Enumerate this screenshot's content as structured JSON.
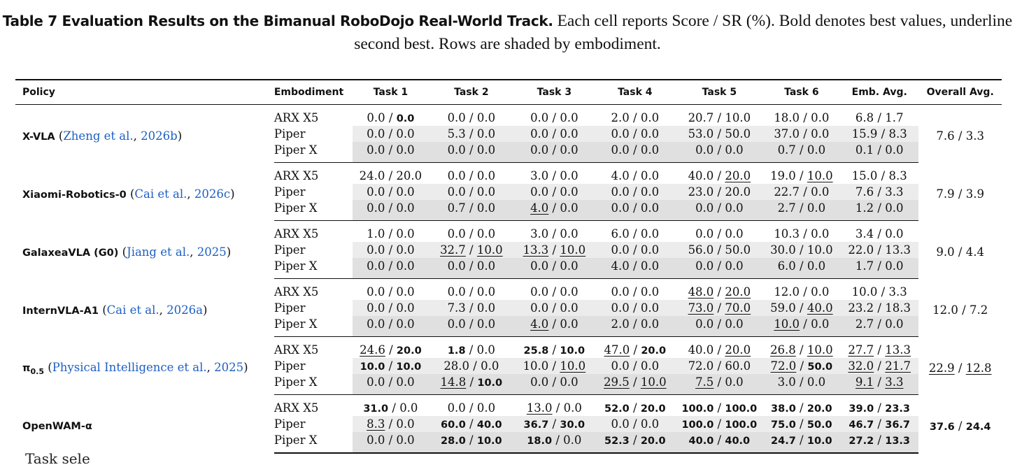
{
  "caption": {
    "label": "Table 7  Evaluation Results on the Bimanual RoboDojo Real-World Track.",
    "text": " Each cell reports Score / SR (%). Bold denotes best values, underline second best. Rows are shaded by embodiment."
  },
  "headers": [
    "Policy",
    "Embodiment",
    "Task 1",
    "Task 2",
    "Task 3",
    "Task 4",
    "Task 5",
    "Task 6",
    "Emb. Avg.",
    "Overall Avg."
  ],
  "groups": [
    {
      "policy": "X-VLA",
      "citation": {
        "author": "Zheng et al.",
        "year": "2026b"
      },
      "overall": {
        "score": "7.6",
        "sr": "3.3"
      },
      "rows": [
        {
          "embodiment": "ARX X5",
          "cells": [
            [
              "0.0",
              "0.0"
            ],
            [
              "0.0",
              "0.0"
            ],
            [
              "0.0",
              "0.0"
            ],
            [
              "2.0",
              "0.0"
            ],
            [
              "20.7",
              "10.0"
            ],
            [
              "18.0",
              "0.0"
            ],
            [
              "6.8",
              "1.7"
            ]
          ]
        },
        {
          "embodiment": "Piper",
          "cells": [
            [
              "0.0",
              "0.0"
            ],
            [
              "5.3",
              "0.0"
            ],
            [
              "0.0",
              "0.0"
            ],
            [
              "0.0",
              "0.0"
            ],
            [
              "53.0",
              "50.0"
            ],
            [
              "37.0",
              "0.0"
            ],
            [
              "15.9",
              "8.3"
            ]
          ]
        },
        {
          "embodiment": "Piper X",
          "cells": [
            [
              "0.0",
              "0.0"
            ],
            [
              "0.0",
              "0.0"
            ],
            [
              "0.0",
              "0.0"
            ],
            [
              "0.0",
              "0.0"
            ],
            [
              "0.0",
              "0.0"
            ],
            [
              "0.7",
              "0.0"
            ],
            [
              "0.1",
              "0.0"
            ]
          ]
        }
      ]
    },
    {
      "policy": "Xiaomi-Robotics-0",
      "citation": {
        "author": "Cai et al.",
        "year": "2026c"
      },
      "overall": {
        "score": "7.9",
        "sr": "3.9"
      },
      "rows": [
        {
          "embodiment": "ARX X5",
          "cells": [
            [
              "24.0",
              "20.0"
            ],
            [
              "0.0",
              "0.0"
            ],
            [
              "3.0",
              "0.0"
            ],
            [
              "4.0",
              "0.0"
            ],
            [
              "40.0",
              "20.0"
            ],
            [
              "19.0",
              "10.0"
            ],
            [
              "15.0",
              "8.3"
            ]
          ]
        },
        {
          "embodiment": "Piper",
          "cells": [
            [
              "0.0",
              "0.0"
            ],
            [
              "0.0",
              "0.0"
            ],
            [
              "0.0",
              "0.0"
            ],
            [
              "0.0",
              "0.0"
            ],
            [
              "23.0",
              "20.0"
            ],
            [
              "22.7",
              "0.0"
            ],
            [
              "7.6",
              "3.3"
            ]
          ]
        },
        {
          "embodiment": "Piper X",
          "cells": [
            [
              "0.0",
              "0.0"
            ],
            [
              "0.7",
              "0.0"
            ],
            [
              "4.0",
              "0.0"
            ],
            [
              "0.0",
              "0.0"
            ],
            [
              "0.0",
              "0.0"
            ],
            [
              "2.7",
              "0.0"
            ],
            [
              "1.2",
              "0.0"
            ]
          ]
        }
      ]
    },
    {
      "policy": "GalaxeaVLA (G0)",
      "citation": {
        "author": "Jiang et al.",
        "year": "2025"
      },
      "overall": {
        "score": "9.0",
        "sr": "4.4"
      },
      "rows": [
        {
          "embodiment": "ARX X5",
          "cells": [
            [
              "1.0",
              "0.0"
            ],
            [
              "0.0",
              "0.0"
            ],
            [
              "3.0",
              "0.0"
            ],
            [
              "6.0",
              "0.0"
            ],
            [
              "0.0",
              "0.0"
            ],
            [
              "10.3",
              "0.0"
            ],
            [
              "3.4",
              "0.0"
            ]
          ]
        },
        {
          "embodiment": "Piper",
          "cells": [
            [
              "0.0",
              "0.0"
            ],
            [
              "32.7",
              "10.0"
            ],
            [
              "13.3",
              "10.0"
            ],
            [
              "0.0",
              "0.0"
            ],
            [
              "56.0",
              "50.0"
            ],
            [
              "30.0",
              "10.0"
            ],
            [
              "22.0",
              "13.3"
            ]
          ]
        },
        {
          "embodiment": "Piper X",
          "cells": [
            [
              "0.0",
              "0.0"
            ],
            [
              "0.0",
              "0.0"
            ],
            [
              "0.0",
              "0.0"
            ],
            [
              "4.0",
              "0.0"
            ],
            [
              "0.0",
              "0.0"
            ],
            [
              "6.0",
              "0.0"
            ],
            [
              "1.7",
              "0.0"
            ]
          ]
        }
      ]
    },
    {
      "policy": "InternVLA-A1",
      "citation": {
        "author": "Cai et al.",
        "year": "2026a"
      },
      "overall": {
        "score": "12.0",
        "sr": "7.2"
      },
      "rows": [
        {
          "embodiment": "ARX X5",
          "cells": [
            [
              "0.0",
              "0.0"
            ],
            [
              "0.0",
              "0.0"
            ],
            [
              "0.0",
              "0.0"
            ],
            [
              "0.0",
              "0.0"
            ],
            [
              "48.0",
              "20.0"
            ],
            [
              "12.0",
              "0.0"
            ],
            [
              "10.0",
              "3.3"
            ]
          ]
        },
        {
          "embodiment": "Piper",
          "cells": [
            [
              "0.0",
              "0.0"
            ],
            [
              "7.3",
              "0.0"
            ],
            [
              "0.0",
              "0.0"
            ],
            [
              "0.0",
              "0.0"
            ],
            [
              "73.0",
              "70.0"
            ],
            [
              "59.0",
              "40.0"
            ],
            [
              "23.2",
              "18.3"
            ]
          ]
        },
        {
          "embodiment": "Piper X",
          "cells": [
            [
              "0.0",
              "0.0"
            ],
            [
              "0.0",
              "0.0"
            ],
            [
              "4.0",
              "0.0"
            ],
            [
              "2.0",
              "0.0"
            ],
            [
              "0.0",
              "0.0"
            ],
            [
              "10.0",
              "0.0"
            ],
            [
              "2.7",
              "0.0"
            ]
          ]
        }
      ]
    },
    {
      "policy": "π0.5",
      "citation": {
        "author": "Physical Intelligence et al.",
        "year": "2025"
      },
      "overall": {
        "score": "22.9",
        "sr": "12.8"
      },
      "rows": [
        {
          "embodiment": "ARX X5",
          "cells": [
            [
              "24.6",
              "20.0"
            ],
            [
              "1.8",
              "0.0"
            ],
            [
              "25.8",
              "10.0"
            ],
            [
              "47.0",
              "20.0"
            ],
            [
              "40.0",
              "20.0"
            ],
            [
              "26.8",
              "10.0"
            ],
            [
              "27.7",
              "13.3"
            ]
          ]
        },
        {
          "embodiment": "Piper",
          "cells": [
            [
              "10.0",
              "10.0"
            ],
            [
              "28.0",
              "0.0"
            ],
            [
              "10.0",
              "10.0"
            ],
            [
              "0.0",
              "0.0"
            ],
            [
              "72.0",
              "60.0"
            ],
            [
              "72.0",
              "50.0"
            ],
            [
              "32.0",
              "21.7"
            ]
          ]
        },
        {
          "embodiment": "Piper X",
          "cells": [
            [
              "0.0",
              "0.0"
            ],
            [
              "14.8",
              "10.0"
            ],
            [
              "0.0",
              "0.0"
            ],
            [
              "29.5",
              "10.0"
            ],
            [
              "7.5",
              "0.0"
            ],
            [
              "3.0",
              "0.0"
            ],
            [
              "9.1",
              "3.3"
            ]
          ]
        }
      ]
    },
    {
      "policy": "OpenWAM-α",
      "citation": null,
      "overall": {
        "score": "37.6",
        "sr": "24.4"
      },
      "rows": [
        {
          "embodiment": "ARX X5",
          "cells": [
            [
              "31.0",
              "0.0"
            ],
            [
              "0.0",
              "0.0"
            ],
            [
              "13.0",
              "0.0"
            ],
            [
              "52.0",
              "20.0"
            ],
            [
              "100.0",
              "100.0"
            ],
            [
              "38.0",
              "20.0"
            ],
            [
              "39.0",
              "23.3"
            ]
          ]
        },
        {
          "embodiment": "Piper",
          "cells": [
            [
              "8.3",
              "0.0"
            ],
            [
              "60.0",
              "40.0"
            ],
            [
              "36.7",
              "30.0"
            ],
            [
              "0.0",
              "0.0"
            ],
            [
              "100.0",
              "100.0"
            ],
            [
              "75.0",
              "50.0"
            ],
            [
              "46.7",
              "36.7"
            ]
          ]
        },
        {
          "embodiment": "Piper X",
          "cells": [
            [
              "0.0",
              "0.0"
            ],
            [
              "28.0",
              "10.0"
            ],
            [
              "18.0",
              "0.0"
            ],
            [
              "52.3",
              "20.0"
            ],
            [
              "40.0",
              "40.0"
            ],
            [
              "24.7",
              "10.0"
            ],
            [
              "27.2",
              "13.3"
            ]
          ]
        }
      ]
    }
  ],
  "formatting": {
    "bold": [
      [
        0,
        0,
        0,
        1
      ],
      [
        4,
        0,
        0,
        1
      ],
      [
        4,
        0,
        1,
        0
      ],
      [
        4,
        0,
        2,
        0
      ],
      [
        4,
        0,
        2,
        1
      ],
      [
        4,
        0,
        3,
        1
      ],
      [
        4,
        1,
        0,
        0
      ],
      [
        4,
        1,
        0,
        1
      ],
      [
        4,
        1,
        5,
        1
      ],
      [
        4,
        2,
        1,
        1
      ],
      [
        5,
        0,
        0,
        0
      ],
      [
        5,
        0,
        3,
        0
      ],
      [
        5,
        0,
        3,
        1
      ],
      [
        5,
        0,
        4,
        0
      ],
      [
        5,
        0,
        4,
        1
      ],
      [
        5,
        0,
        5,
        0
      ],
      [
        5,
        0,
        5,
        1
      ],
      [
        5,
        0,
        6,
        0
      ],
      [
        5,
        0,
        6,
        1
      ],
      [
        5,
        1,
        1,
        0
      ],
      [
        5,
        1,
        1,
        1
      ],
      [
        5,
        1,
        2,
        0
      ],
      [
        5,
        1,
        2,
        1
      ],
      [
        5,
        1,
        4,
        0
      ],
      [
        5,
        1,
        4,
        1
      ],
      [
        5,
        1,
        5,
        0
      ],
      [
        5,
        1,
        5,
        1
      ],
      [
        5,
        1,
        6,
        0
      ],
      [
        5,
        1,
        6,
        1
      ],
      [
        5,
        2,
        1,
        0
      ],
      [
        5,
        2,
        1,
        1
      ],
      [
        5,
        2,
        2,
        0
      ],
      [
        5,
        2,
        3,
        0
      ],
      [
        5,
        2,
        3,
        1
      ],
      [
        5,
        2,
        4,
        0
      ],
      [
        5,
        2,
        4,
        1
      ],
      [
        5,
        2,
        5,
        0
      ],
      [
        5,
        2,
        5,
        1
      ],
      [
        5,
        2,
        6,
        0
      ],
      [
        5,
        2,
        6,
        1
      ]
    ],
    "underline": [
      [
        1,
        0,
        4,
        1
      ],
      [
        1,
        0,
        5,
        1
      ],
      [
        1,
        2,
        2,
        0
      ],
      [
        2,
        1,
        1,
        0
      ],
      [
        2,
        1,
        1,
        1
      ],
      [
        2,
        1,
        2,
        0
      ],
      [
        2,
        1,
        2,
        1
      ],
      [
        3,
        0,
        4,
        0
      ],
      [
        3,
        0,
        4,
        1
      ],
      [
        3,
        1,
        4,
        0
      ],
      [
        3,
        1,
        4,
        1
      ],
      [
        3,
        1,
        5,
        1
      ],
      [
        3,
        2,
        2,
        0
      ],
      [
        3,
        2,
        5,
        0
      ],
      [
        4,
        0,
        0,
        0
      ],
      [
        4,
        0,
        3,
        0
      ],
      [
        4,
        0,
        4,
        1
      ],
      [
        4,
        0,
        5,
        0
      ],
      [
        4,
        0,
        5,
        1
      ],
      [
        4,
        0,
        6,
        0
      ],
      [
        4,
        0,
        6,
        1
      ],
      [
        4,
        1,
        2,
        1
      ],
      [
        4,
        1,
        5,
        0
      ],
      [
        4,
        1,
        6,
        0
      ],
      [
        4,
        1,
        6,
        1
      ],
      [
        4,
        2,
        1,
        0
      ],
      [
        4,
        2,
        3,
        0
      ],
      [
        4,
        2,
        3,
        1
      ],
      [
        4,
        2,
        4,
        0
      ],
      [
        4,
        2,
        6,
        0
      ],
      [
        4,
        2,
        6,
        1
      ],
      [
        5,
        0,
        2,
        0
      ],
      [
        5,
        1,
        0,
        0
      ]
    ],
    "overall_bold": [
      5
    ],
    "overall_underline": [
      4
    ]
  },
  "footer_fragment": "Task sele"
}
